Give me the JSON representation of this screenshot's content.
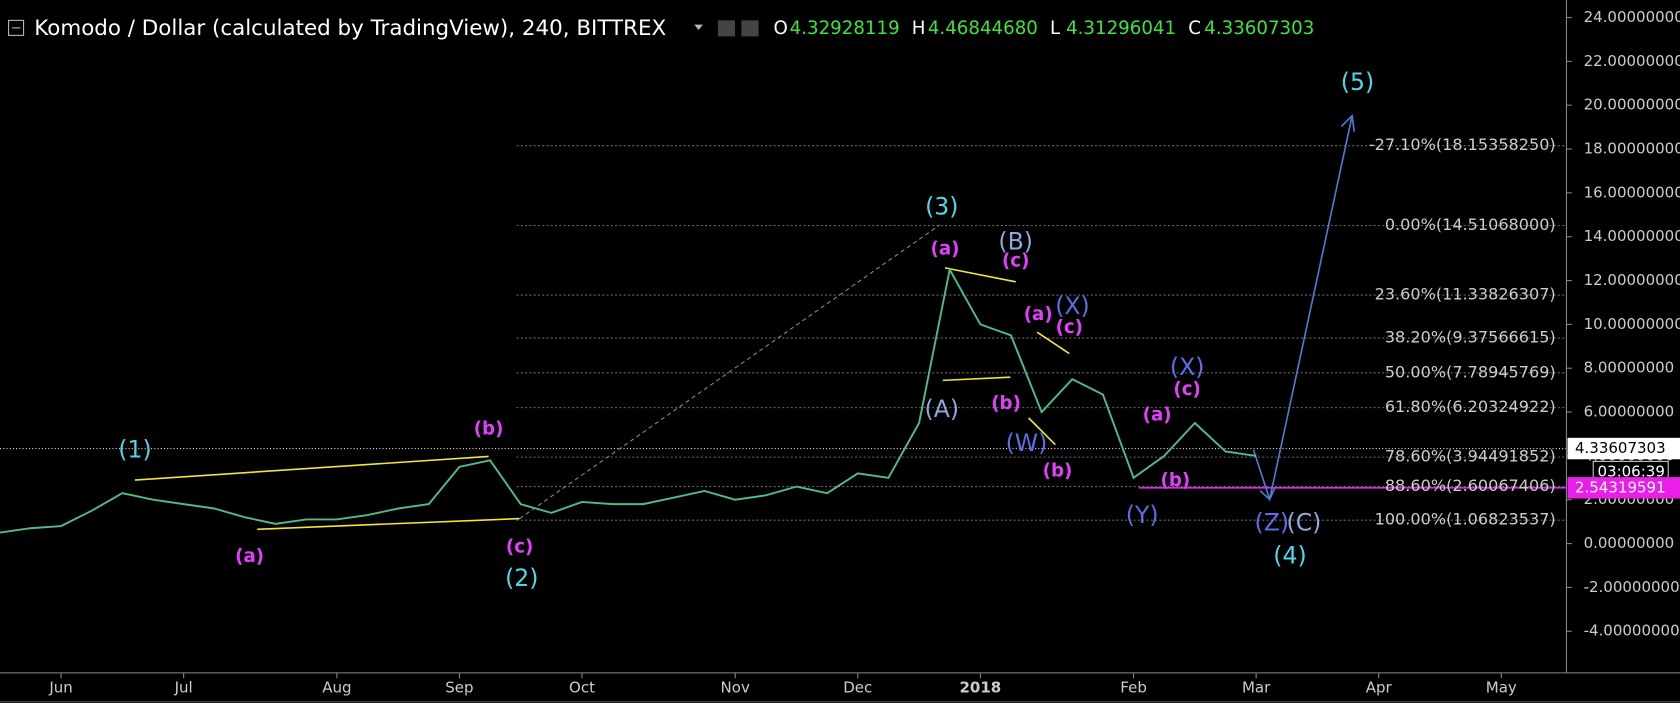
{
  "chart_data": {
    "type": "line",
    "title": "Komodo / Dollar (calculated by TradingView), 240, BITTREX",
    "ohlc": [
      {
        "label": "O",
        "value": "4.32928119"
      },
      {
        "label": "H",
        "value": "4.46844680"
      },
      {
        "label": "L",
        "value": "4.31296041"
      },
      {
        "label": "C",
        "value": "4.33607303"
      }
    ],
    "categories": [
      null,
      null,
      "Jun",
      null,
      null,
      null,
      "Jul",
      null,
      null,
      null,
      null,
      "Aug",
      null,
      null,
      null,
      "Sep",
      null,
      null,
      null,
      "Oct",
      null,
      null,
      null,
      null,
      "Nov",
      null,
      null,
      null,
      "Dec",
      null,
      null,
      null,
      "2018",
      null,
      null,
      null,
      null,
      "Feb",
      null,
      null,
      null,
      "Mar",
      null,
      null,
      null,
      "Apr",
      null,
      null,
      null,
      "May",
      null,
      null
    ],
    "values": [
      0.5,
      0.7,
      0.8,
      1.5,
      2.3,
      2.0,
      1.8,
      1.6,
      1.2,
      0.9,
      1.1,
      1.1,
      1.3,
      1.6,
      1.8,
      3.5,
      3.8,
      1.8,
      1.4,
      1.9,
      1.8,
      1.8,
      2.1,
      2.4,
      2.0,
      2.2,
      2.6,
      2.3,
      3.2,
      3.0,
      5.5,
      12.5,
      10.0,
      9.5,
      6.0,
      7.5,
      6.8,
      3.0,
      4.0,
      5.5,
      4.2,
      4.0,
      null,
      null,
      null,
      null,
      null,
      null,
      null,
      null,
      null,
      null
    ],
    "color": "#53b987",
    "ylim": [
      -5.9,
      24.8
    ],
    "yticks": [
      {
        "value": 24,
        "label": "24.00000000"
      },
      {
        "value": 22,
        "label": "22.00000000"
      },
      {
        "value": 20,
        "label": "20.00000000"
      },
      {
        "value": 18,
        "label": "18.00000000"
      },
      {
        "value": 16,
        "label": "16.00000000"
      },
      {
        "value": 14,
        "label": "14.00000000"
      },
      {
        "value": 12,
        "label": "12.00000000"
      },
      {
        "value": 10,
        "label": "10.00000000"
      },
      {
        "value": 8,
        "label": "8.00000000"
      },
      {
        "value": 6,
        "label": "6.00000000"
      },
      {
        "value": 4,
        "label": "4.00000000"
      },
      {
        "value": 2,
        "label": "2.00000000"
      },
      {
        "value": 0,
        "label": "0.00000000"
      },
      {
        "value": -2,
        "label": "-2.00000000"
      },
      {
        "value": -4,
        "label": "-4.00000000"
      }
    ],
    "fib_levels": [
      {
        "value": 18.1535825,
        "label": "-27.10%(18.15358250)"
      },
      {
        "value": 14.51068,
        "label": "0.00%(14.51068000)"
      },
      {
        "value": 11.33826307,
        "label": "23.60%(11.33826307)"
      },
      {
        "value": 9.37566615,
        "label": "38.20%(9.37566615)"
      },
      {
        "value": 7.78945769,
        "label": "50.00%(7.78945769)"
      },
      {
        "value": 6.20324922,
        "label": "61.80%(6.20324922)"
      },
      {
        "value": 3.94491852,
        "label": "78.60%(3.94491852)"
      },
      {
        "value": 2.60067406,
        "label": "88.60%(2.60067406)"
      },
      {
        "value": 1.06823537,
        "label": "100.00%(1.06823537)"
      }
    ],
    "last_price": 4.33607303,
    "countdown": "03:06:39",
    "level_line": 2.54319591,
    "annotations": [
      {
        "text": "(1)",
        "color": "#4fd6e8"
      },
      {
        "text": "(a)",
        "color": "#e040fb"
      },
      {
        "text": "(b)",
        "color": "#e040fb"
      },
      {
        "text": "(c)",
        "color": "#e040fb"
      },
      {
        "text": "(2)",
        "color": "#4fd6e8"
      },
      {
        "text": "(3)",
        "color": "#4fd6e8"
      },
      {
        "text": "(a)",
        "color": "#e040fb"
      },
      {
        "text": "(B)",
        "color": "#8fa8d8"
      },
      {
        "text": "(c)",
        "color": "#e040fb"
      },
      {
        "text": "(A)",
        "color": "#8fa8d8"
      },
      {
        "text": "(a)",
        "color": "#e040fb"
      },
      {
        "text": "(X)",
        "color": "#5b6ee8"
      },
      {
        "text": "(c)",
        "color": "#e040fb"
      },
      {
        "text": "(b)",
        "color": "#e040fb"
      },
      {
        "text": "(W)",
        "color": "#5b6ee8"
      },
      {
        "text": "(b)",
        "color": "#e040fb"
      },
      {
        "text": "(Y)",
        "color": "#5b6ee8"
      },
      {
        "text": "(a)",
        "color": "#e040fb"
      },
      {
        "text": "(X)",
        "color": "#5b6ee8"
      },
      {
        "text": "(c)",
        "color": "#e040fb"
      },
      {
        "text": "(b)",
        "color": "#e040fb"
      },
      {
        "text": "(Z)",
        "color": "#5b6ee8"
      },
      {
        "text": "(C)",
        "color": "#8fa8d8"
      },
      {
        "text": "(4)",
        "color": "#4fd6e8"
      },
      {
        "text": "(5)",
        "color": "#4fd6e8"
      }
    ]
  }
}
